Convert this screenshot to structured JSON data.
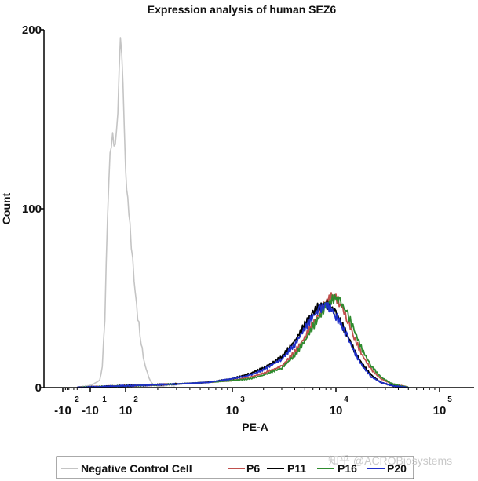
{
  "chart_data": {
    "type": "line",
    "title": "Expression analysis of human SEZ6",
    "xlabel": "PE-A",
    "ylabel": "Count",
    "xscale": "biexponential",
    "ylim": [
      0,
      200
    ],
    "yticks": [
      {
        "value": 0,
        "label": "0"
      },
      {
        "value": 100,
        "label": "100"
      },
      {
        "value": 200,
        "label": "200"
      }
    ],
    "xticks": [
      {
        "value": -100,
        "base": "-10",
        "exp": "2"
      },
      {
        "value": -10,
        "base": "-10",
        "exp": "1"
      },
      {
        "value": 100,
        "base": "10",
        "exp": "2"
      },
      {
        "value": 1000,
        "base": "10",
        "exp": "3"
      },
      {
        "value": 10000,
        "base": "10",
        "exp": "4"
      },
      {
        "value": 100000,
        "base": "10",
        "exp": "5"
      }
    ],
    "legend_position": "bottom",
    "series": [
      {
        "name": "Negative Control Cell",
        "color": "#c4c4c4",
        "x": [
          -30,
          -10,
          0,
          10,
          20,
          30,
          40,
          50,
          60,
          70,
          80,
          90,
          100,
          110,
          120,
          130,
          140,
          150,
          160,
          170,
          180,
          200,
          250,
          300
        ],
        "y": [
          0,
          1,
          4,
          12,
          40,
          95,
          130,
          140,
          135,
          155,
          198,
          170,
          120,
          90,
          60,
          40,
          25,
          14,
          8,
          4,
          2,
          1,
          0,
          0
        ]
      },
      {
        "name": "P6",
        "color": "#c0504d",
        "x": [
          -30,
          100,
          300,
          600,
          1000,
          1500,
          2000,
          3000,
          4000,
          5000,
          6000,
          7000,
          8000,
          9000,
          10000,
          11000,
          13000,
          15000,
          18000,
          22000,
          27000,
          35000,
          50000
        ],
        "y": [
          0,
          1,
          2,
          3,
          4,
          6,
          8,
          12,
          20,
          28,
          36,
          42,
          48,
          51,
          50,
          47,
          38,
          28,
          18,
          10,
          5,
          2,
          0
        ]
      },
      {
        "name": "P11",
        "color": "#000000",
        "x": [
          -30,
          100,
          300,
          600,
          1000,
          1500,
          2000,
          3000,
          4000,
          5000,
          6000,
          7000,
          8000,
          9000,
          10000,
          11000,
          13000,
          15000,
          18000,
          22000,
          27000,
          35000,
          50000
        ],
        "y": [
          0,
          1,
          2,
          3,
          5,
          8,
          11,
          17,
          26,
          35,
          42,
          46,
          47,
          45,
          41,
          37,
          29,
          21,
          13,
          7,
          3,
          1,
          0
        ]
      },
      {
        "name": "P16",
        "color": "#2e8b2e",
        "x": [
          -30,
          100,
          300,
          600,
          1000,
          1500,
          2000,
          3000,
          4000,
          5000,
          6000,
          7000,
          8000,
          9000,
          10000,
          11000,
          13000,
          15000,
          18000,
          22000,
          27000,
          35000,
          50000
        ],
        "y": [
          0,
          1,
          2,
          3,
          4,
          5,
          7,
          11,
          18,
          26,
          34,
          40,
          46,
          49,
          50,
          48,
          41,
          32,
          21,
          12,
          6,
          2,
          0
        ]
      },
      {
        "name": "P20",
        "color": "#1f2fc8",
        "x": [
          -30,
          100,
          300,
          600,
          1000,
          1500,
          2000,
          3000,
          4000,
          5000,
          6000,
          7000,
          8000,
          9000,
          10000,
          11000,
          13000,
          15000,
          18000,
          22000,
          27000,
          35000,
          50000
        ],
        "y": [
          0,
          1,
          2,
          3,
          5,
          7,
          10,
          16,
          24,
          33,
          40,
          44,
          46,
          44,
          40,
          36,
          28,
          20,
          12,
          6,
          3,
          1,
          0
        ]
      }
    ]
  },
  "watermark": "知乎 @ACROBiosystems"
}
